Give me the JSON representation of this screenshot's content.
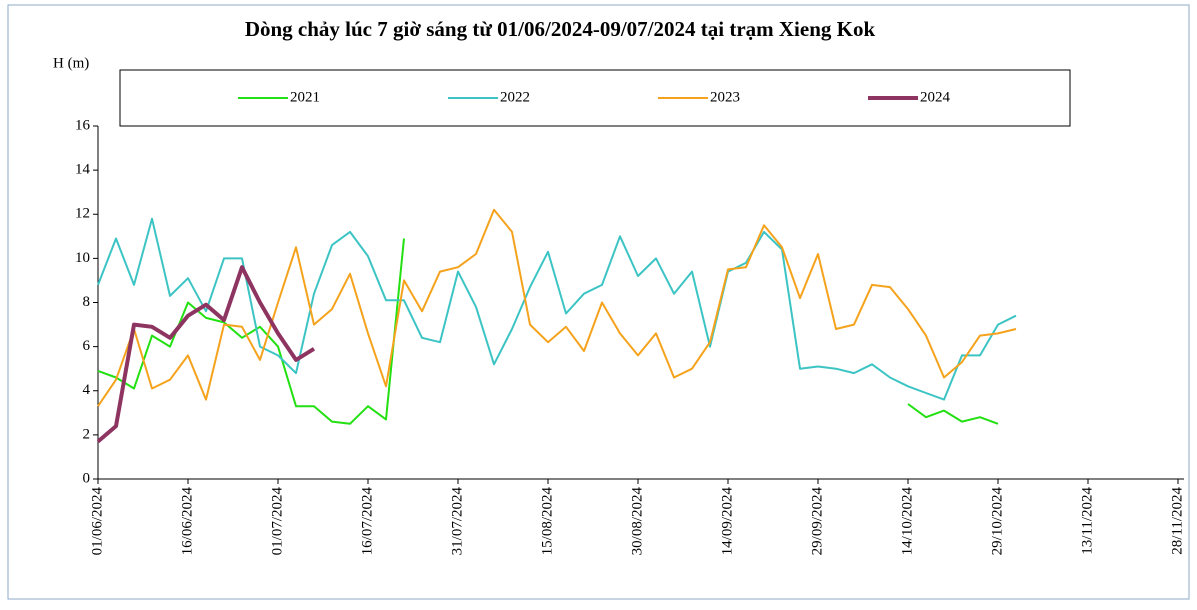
{
  "chart_data": {
    "type": "line",
    "title": "Dòng chảy lúc 7 giờ sáng từ 01/06/2024-09/07/2024 tại trạm Xieng Kok",
    "y_label": "H (m)",
    "x": [
      "01/06/2024",
      "04/06/2024",
      "07/06/2024",
      "10/06/2024",
      "13/06/2024",
      "16/06/2024",
      "19/06/2024",
      "22/06/2024",
      "25/06/2024",
      "28/06/2024",
      "01/07/2024",
      "04/07/2024",
      "07/07/2024",
      "10/07/2024",
      "13/07/2024",
      "16/07/2024",
      "19/07/2024",
      "22/07/2024",
      "25/07/2024",
      "28/07/2024",
      "31/07/2024",
      "03/08/2024",
      "06/08/2024",
      "09/08/2024",
      "12/08/2024",
      "15/08/2024",
      "18/08/2024",
      "21/08/2024",
      "24/08/2024",
      "27/08/2024",
      "30/08/2024",
      "02/09/2024",
      "05/09/2024",
      "08/09/2024",
      "11/09/2024",
      "14/09/2024",
      "17/09/2024",
      "20/09/2024",
      "23/09/2024",
      "26/09/2024",
      "29/09/2024",
      "02/10/2024",
      "05/10/2024",
      "08/10/2024",
      "11/10/2024",
      "14/10/2024",
      "17/10/2024",
      "20/10/2024",
      "23/10/2024",
      "26/10/2024",
      "29/10/2024",
      "01/11/2024"
    ],
    "series": [
      {
        "name": "2021",
        "color": "#22e011",
        "width": 2,
        "values": [
          4.9,
          4.6,
          4.1,
          6.5,
          6.0,
          8.0,
          7.3,
          7.1,
          6.4,
          6.9,
          6.0,
          3.3,
          3.3,
          2.6,
          2.5,
          3.3,
          2.7,
          10.9,
          null,
          null,
          null,
          null,
          null,
          null,
          null,
          null,
          null,
          null,
          null,
          null,
          null,
          null,
          null,
          null,
          null,
          null,
          null,
          null,
          null,
          null,
          null,
          null,
          null,
          null,
          null,
          3.4,
          2.8,
          3.1,
          2.6,
          2.8,
          2.5,
          null
        ]
      },
      {
        "name": "2022",
        "color": "#3cc4c4",
        "width": 2,
        "values": [
          8.8,
          10.9,
          8.8,
          11.8,
          8.3,
          9.1,
          7.6,
          10.0,
          10.0,
          6.0,
          5.6,
          4.8,
          8.4,
          10.6,
          11.2,
          10.1,
          8.1,
          8.1,
          6.4,
          6.2,
          9.4,
          7.8,
          5.2,
          6.8,
          8.7,
          10.3,
          7.5,
          8.4,
          8.8,
          11.0,
          9.2,
          10.0,
          8.4,
          9.4,
          6.0,
          9.4,
          9.8,
          11.2,
          10.4,
          5.0,
          5.1,
          5.0,
          4.8,
          5.2,
          4.6,
          4.2,
          3.9,
          3.6,
          5.6,
          5.6,
          7.0,
          7.4
        ]
      },
      {
        "name": "2023",
        "color": "#f5a21c",
        "width": 2,
        "values": [
          3.3,
          4.5,
          6.8,
          4.1,
          4.5,
          5.6,
          3.6,
          7.0,
          6.9,
          5.4,
          8.0,
          10.5,
          7.0,
          7.7,
          9.3,
          6.6,
          4.2,
          9.0,
          7.6,
          9.4,
          9.6,
          10.2,
          12.2,
          11.2,
          7.0,
          6.2,
          6.9,
          5.8,
          8.0,
          6.6,
          5.6,
          6.6,
          4.6,
          5.0,
          6.2,
          9.5,
          9.6,
          11.5,
          10.5,
          8.2,
          10.2,
          6.8,
          7.0,
          8.8,
          8.7,
          7.7,
          6.5,
          4.6,
          5.3,
          6.5,
          6.6,
          6.8
        ]
      },
      {
        "name": "2024",
        "color": "#8e3460",
        "width": 4,
        "values": [
          1.7,
          2.4,
          7.0,
          6.9,
          6.4,
          7.4,
          7.9,
          7.2,
          9.6,
          8.0,
          6.6,
          5.4,
          5.9,
          null,
          null,
          null,
          null,
          null,
          null,
          null,
          null,
          null,
          null,
          null,
          null,
          null,
          null,
          null,
          null,
          null,
          null,
          null,
          null,
          null,
          null,
          null,
          null,
          null,
          null,
          null,
          null,
          null,
          null,
          null,
          null,
          null,
          null,
          null,
          null,
          null,
          null,
          null
        ]
      }
    ],
    "ylim": [
      0,
      16
    ],
    "yticks": [
      0,
      2,
      4,
      6,
      8,
      10,
      12,
      14,
      16
    ],
    "xlim": [
      "01/06/2024",
      "28/11/2024"
    ],
    "xticks": [
      "01/06/2024",
      "16/06/2024",
      "01/07/2024",
      "16/07/2024",
      "31/07/2024",
      "15/08/2024",
      "30/08/2024",
      "14/09/2024",
      "29/09/2024",
      "14/10/2024",
      "29/10/2024",
      "13/11/2024",
      "28/11/2024"
    ],
    "legend": "top",
    "grid": false
  }
}
